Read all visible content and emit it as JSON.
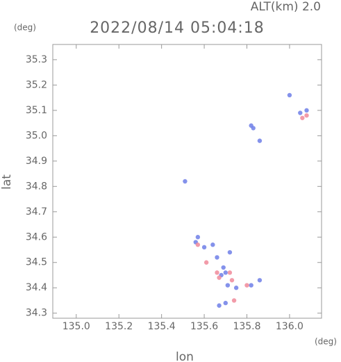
{
  "chart_data": {
    "type": "scatter",
    "title": "2022/08/14 05:04:18",
    "subtitle": "ALT(km) 2.0",
    "y_unit": "(deg)",
    "x_unit": "(deg)",
    "x_label": "lon",
    "y_label": "lat",
    "xlim": [
      134.89,
      136.15
    ],
    "ylim": [
      34.28,
      35.36
    ],
    "xticks": [
      {
        "value": 135.0,
        "label": "135.0"
      },
      135.2,
      135.4,
      135.6,
      135.8,
      {
        "value": 136.0,
        "label": "136.0"
      }
    ],
    "yticks": [
      34.3,
      34.4,
      34.5,
      34.6,
      34.7,
      34.8,
      34.9,
      {
        "value": 35.0,
        "label": "35.0"
      },
      35.1,
      35.2,
      35.3
    ],
    "series": [
      {
        "color": "#6f7fe8",
        "x": [
          136.0,
          136.08,
          136.05,
          135.82,
          135.83,
          135.86,
          135.51,
          135.57,
          135.6,
          135.64,
          135.56,
          135.66,
          135.69,
          135.7,
          135.68,
          135.71,
          135.75,
          135.86,
          135.82,
          135.67,
          135.7,
          135.72
        ],
        "values": [
          35.16,
          35.1,
          35.09,
          35.04,
          35.03,
          34.98,
          34.82,
          34.6,
          34.56,
          34.57,
          34.58,
          34.52,
          34.48,
          34.46,
          34.45,
          34.41,
          34.4,
          34.43,
          34.41,
          34.33,
          34.34,
          34.54
        ]
      },
      {
        "color": "#f08a9a",
        "x": [
          136.08,
          136.06,
          135.61,
          135.67,
          135.66,
          135.72,
          135.73,
          135.8,
          135.74,
          135.57
        ],
        "values": [
          35.08,
          35.07,
          34.5,
          34.44,
          34.46,
          34.46,
          34.43,
          34.41,
          34.35,
          34.57
        ]
      }
    ]
  }
}
